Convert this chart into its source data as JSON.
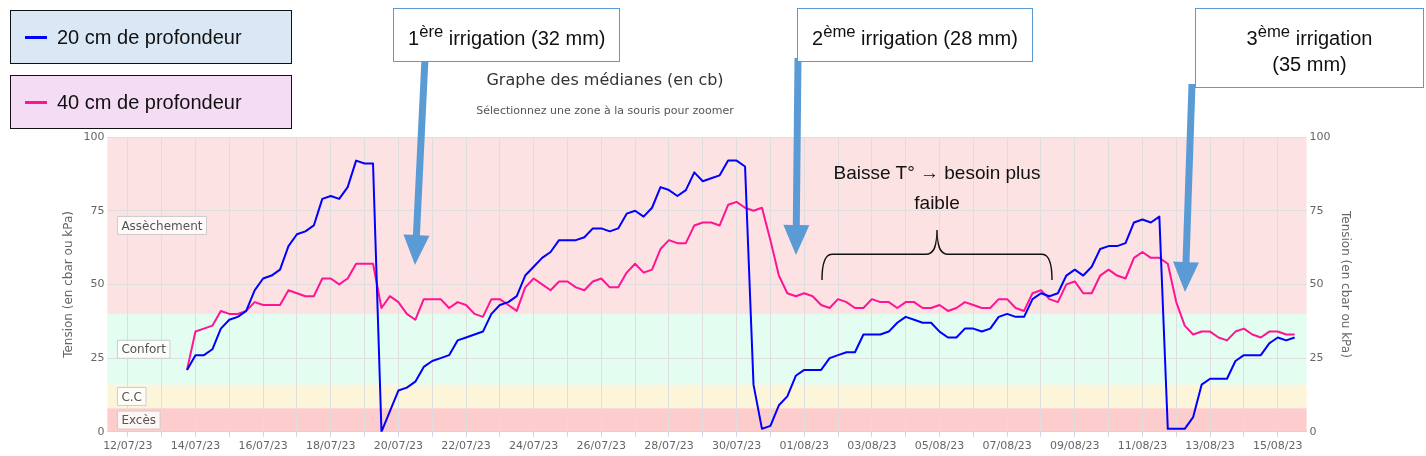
{
  "chart_data": {
    "type": "line",
    "title": "Graphe des médianes (en cb)",
    "subtitle": "Sélectionnez une zone à la souris pour zoomer",
    "ylabel": "Tension (en cbar ou kPa)",
    "y2label": "Tension (en cbar ou kPa)",
    "x": [
      "--07-13T18:00",
      "--07-14T00:00",
      "--07-14T06:00",
      "--07-14T12:00",
      "--07-14T18:00",
      "--07-15T00:00",
      "--07-15T06:00",
      "--07-15T12:00",
      "--07-15T18:00",
      "--07-16T00:00",
      "--07-16T06:00",
      "--07-16T12:00",
      "--07-16T18:00",
      "--07-17T00:00",
      "--07-17T06:00",
      "--07-17T12:00",
      "--07-17T18:00",
      "--07-18T00:00",
      "--07-18T06:00",
      "--07-18T12:00",
      "--07-18T18:00",
      "--07-19T00:00",
      "--07-19T06:00",
      "--07-19T12:00",
      "--07-19T18:00",
      "--07-20T00:00",
      "--07-20T06:00",
      "--07-20T12:00",
      "--07-20T18:00",
      "--07-21T00:00",
      "--07-21T06:00",
      "--07-21T12:00",
      "--07-21T18:00",
      "--07-22T00:00",
      "--07-22T06:00",
      "--07-22T12:00",
      "--07-22T18:00",
      "--07-23T00:00",
      "--07-23T06:00",
      "--07-23T12:00",
      "--07-23T18:00",
      "--07-24T00:00",
      "--07-24T06:00",
      "--07-24T12:00",
      "--07-24T18:00",
      "--07-25T00:00",
      "--07-25T06:00",
      "--07-25T12:00",
      "--07-25T18:00",
      "--07-26T00:00",
      "--07-26T06:00",
      "--07-26T12:00",
      "--07-26T18:00",
      "--07-27T00:00",
      "--07-27T06:00",
      "--07-27T12:00",
      "--07-27T18:00",
      "--07-28T00:00",
      "--07-28T06:00",
      "--07-28T12:00",
      "--07-28T18:00",
      "--07-29T00:00",
      "--07-29T06:00",
      "--07-29T12:00",
      "--07-29T18:00",
      "--07-30T00:00",
      "--07-30T06:00",
      "--07-30T12:00",
      "--07-30T18:00",
      "--07-31T00:00",
      "--07-31T06:00",
      "--07-31T12:00",
      "--07-31T18:00",
      "--08-01T00:00",
      "--08-01T06:00",
      "--08-01T12:00",
      "--08-01T18:00",
      "--08-02T00:00",
      "--08-02T06:00",
      "--08-02T12:00",
      "--08-02T18:00",
      "--08-03T00:00",
      "--08-03T06:00",
      "--08-03T12:00",
      "--08-03T18:00",
      "--08-04T00:00",
      "--08-04T06:00",
      "--08-04T12:00",
      "--08-04T18:00",
      "--08-05T00:00",
      "--08-05T06:00",
      "--08-05T12:00",
      "--08-05T18:00",
      "--08-06T00:00",
      "--08-06T06:00",
      "--08-06T12:00",
      "--08-06T18:00",
      "--08-07T00:00",
      "--08-07T06:00",
      "--08-07T12:00",
      "--08-07T18:00",
      "--08-08T00:00",
      "--08-08T06:00",
      "--08-08T12:00",
      "--08-08T18:00",
      "--08-09T00:00",
      "--08-09T06:00",
      "--08-09T12:00",
      "--08-09T18:00",
      "--08-10T00:00",
      "--08-10T06:00",
      "--08-10T12:00",
      "--08-10T18:00",
      "--08-11T00:00",
      "--08-11T06:00",
      "--08-11T12:00",
      "--08-11T18:00",
      "--08-12T00:00",
      "--08-12T06:00",
      "--08-12T12:00",
      "--08-12T18:00",
      "--08-13T00:00",
      "--08-13T06:00",
      "--08-13T12:00",
      "--08-13T18:00",
      "--08-14T00:00",
      "--08-14T06:00",
      "--08-14T12:00",
      "--08-14T18:00",
      "--08-15T00:00",
      "--08-15T06:00",
      "--08-15T12:00"
    ],
    "series": [
      {
        "name": "20 cm de profondeur",
        "color": "#0000ff",
        "values": [
          21,
          26,
          26,
          28,
          35,
          38,
          39,
          41,
          48,
          52,
          53,
          55,
          63,
          67,
          68,
          70,
          79,
          80,
          79,
          83,
          92,
          91,
          91,
          0,
          7,
          14,
          15,
          17,
          22,
          24,
          25,
          26,
          31,
          32,
          33,
          34,
          40,
          43,
          44,
          46,
          53,
          56,
          59,
          61,
          65,
          65,
          65,
          66,
          69,
          69,
          68,
          69,
          74,
          75,
          73,
          76,
          83,
          82,
          80,
          82,
          88,
          85,
          86,
          87,
          92,
          92,
          90,
          16,
          1,
          2,
          9,
          12,
          19,
          21,
          21,
          21,
          25,
          26,
          27,
          27,
          33,
          33,
          33,
          34,
          37,
          39,
          38,
          37,
          37,
          34,
          32,
          32,
          35,
          35,
          34,
          35,
          39,
          40,
          39,
          39,
          45,
          47,
          46,
          47,
          53,
          55,
          53,
          56,
          62,
          63,
          63,
          64,
          71,
          72,
          71,
          73,
          1,
          1,
          1,
          5,
          16,
          18,
          18,
          18,
          24,
          26,
          26,
          26,
          30,
          32,
          31,
          32
        ]
      },
      {
        "name": "40 cm de profondeur",
        "color": "#ff1493",
        "values": [
          21,
          34,
          35,
          36,
          41,
          40,
          40,
          41,
          44,
          43,
          43,
          43,
          48,
          47,
          46,
          46,
          52,
          52,
          50,
          52,
          57,
          57,
          57,
          42,
          46,
          44,
          40,
          38,
          45,
          45,
          45,
          42,
          44,
          43,
          40,
          39,
          45,
          45,
          43,
          41,
          49,
          52,
          50,
          48,
          51,
          51,
          49,
          48,
          51,
          52,
          49,
          49,
          54,
          57,
          54,
          55,
          62,
          65,
          64,
          64,
          70,
          71,
          71,
          70,
          77,
          78,
          76,
          75,
          76,
          65,
          53,
          47,
          46,
          47,
          46,
          43,
          42,
          45,
          44,
          42,
          42,
          45,
          44,
          44,
          42,
          44,
          44,
          42,
          42,
          43,
          41,
          42,
          44,
          43,
          42,
          42,
          45,
          45,
          42,
          41,
          47,
          48,
          45,
          44,
          50,
          51,
          47,
          47,
          53,
          55,
          53,
          52,
          59,
          61,
          59,
          59,
          57,
          44,
          36,
          33,
          34,
          34,
          32,
          31,
          34,
          35,
          33,
          32,
          34,
          34,
          33,
          33
        ]
      }
    ],
    "xlim": [
      "--07-11T09:30",
      "--08-15T20:30"
    ],
    "xticks": [
      {
        "value": "--07-12",
        "label": "12/07/23"
      },
      {
        "value": "--07-13",
        "label": null
      },
      {
        "value": "--07-14",
        "label": "14/07/23"
      },
      {
        "value": "--07-15",
        "label": null
      },
      {
        "value": "--07-16",
        "label": "16/07/23"
      },
      {
        "value": "--07-17",
        "label": null
      },
      {
        "value": "--07-18",
        "label": "18/07/23"
      },
      {
        "value": "--07-19",
        "label": null
      },
      {
        "value": "--07-20",
        "label": "20/07/23"
      },
      {
        "value": "--07-21",
        "label": null
      },
      {
        "value": "--07-22",
        "label": "22/07/23"
      },
      {
        "value": "--07-23",
        "label": null
      },
      {
        "value": "--07-24",
        "label": "24/07/23"
      },
      {
        "value": "--07-25",
        "label": null
      },
      {
        "value": "--07-26",
        "label": "26/07/23"
      },
      {
        "value": "--07-27",
        "label": null
      },
      {
        "value": "--07-28",
        "label": "28/07/23"
      },
      {
        "value": "--07-29",
        "label": null
      },
      {
        "value": "--07-30",
        "label": "30/07/23"
      },
      {
        "value": "--07-31",
        "label": null
      },
      {
        "value": "--08-01",
        "label": "01/08/23"
      },
      {
        "value": "--08-02",
        "label": null
      },
      {
        "value": "--08-03",
        "label": "03/08/23"
      },
      {
        "value": "--08-04",
        "label": null
      },
      {
        "value": "--08-05",
        "label": "05/08/23"
      },
      {
        "value": "--08-06",
        "label": null
      },
      {
        "value": "--08-07",
        "label": "07/08/23"
      },
      {
        "value": "--08-08",
        "label": null
      },
      {
        "value": "--08-09",
        "label": "09/08/23"
      },
      {
        "value": "--08-10",
        "label": null
      },
      {
        "value": "--08-11",
        "label": "11/08/23"
      },
      {
        "value": "--08-12",
        "label": null
      },
      {
        "value": "--08-13",
        "label": "13/08/23"
      },
      {
        "value": "--08-14",
        "label": null
      },
      {
        "value": "--08-15",
        "label": "15/08/23"
      }
    ],
    "ylim": [
      0,
      100
    ],
    "yticks": [
      0,
      25,
      50,
      75,
      100
    ],
    "y2lim": [
      0,
      100
    ],
    "y2ticks": [
      0,
      25,
      50,
      75,
      100
    ],
    "bands": [
      {
        "axis": "y",
        "from": 40,
        "to": 100,
        "label": "Assèchement",
        "color": "#fde2e4"
      },
      {
        "axis": "y",
        "from": 16,
        "to": 40,
        "label": "Confort",
        "color": "#e3fdf0"
      },
      {
        "axis": "y",
        "from": 8,
        "to": 16,
        "label": "C.C",
        "color": "#fdf5da"
      },
      {
        "axis": "y",
        "from": 0,
        "to": 8,
        "label": "Excès",
        "color": "#fdcccc"
      }
    ],
    "annotations": [
      "1$^{ère}$ irrigation (32 mm)",
      "2$^{ème}$ irrigation (28 mm)",
      "3$^{ème}$ irrigation (35 mm)",
      "Baisse T° → besoin plus faible"
    ],
    "grid": true,
    "legend": "top left",
    "marker": "none",
    "line_style": "solid"
  }
}
